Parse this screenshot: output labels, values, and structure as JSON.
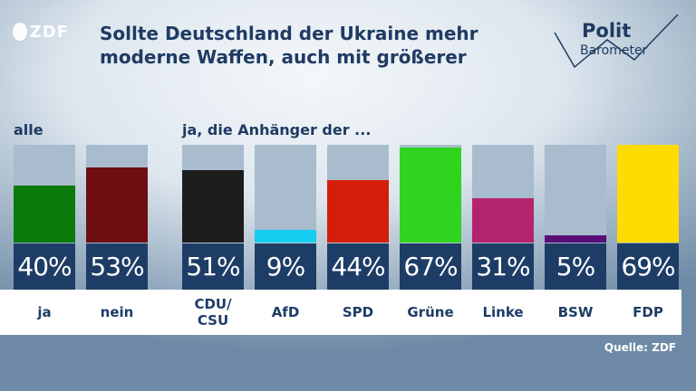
{
  "title": "Sollte Deutschland der Ukraine mehr moderne Waffen, auch mit größerer",
  "brand": {
    "logo": "ZDF",
    "polit": "Polit",
    "barometer": "Barometer"
  },
  "source": "Quelle: ZDF",
  "chart_data": {
    "type": "bar",
    "groups": [
      {
        "label": "alle",
        "categories": [
          "ja",
          "nein"
        ]
      },
      {
        "label": "ja, die Anhänger der ...",
        "categories": [
          "CDU/\nCSU",
          "AfD",
          "SPD",
          "Grüne",
          "Linke",
          "BSW",
          "FDP"
        ]
      }
    ],
    "bars": [
      {
        "category": "ja",
        "value": 40,
        "label": "40%",
        "color": "#0a7a0a"
      },
      {
        "category": "nein",
        "value": 53,
        "label": "53%",
        "color": "#6e0e12"
      },
      {
        "category": "CDU/\nCSU",
        "value": 51,
        "label": "51%",
        "color": "#1c1c1c"
      },
      {
        "category": "AfD",
        "value": 9,
        "label": "9%",
        "color": "#16cdf0"
      },
      {
        "category": "SPD",
        "value": 44,
        "label": "44%",
        "color": "#d41e0a"
      },
      {
        "category": "Grüne",
        "value": 67,
        "label": "67%",
        "color": "#2fd41e"
      },
      {
        "category": "Linke",
        "value": 31,
        "label": "31%",
        "color": "#b4246e"
      },
      {
        "category": "BSW",
        "value": 5,
        "label": "5%",
        "color": "#5a0f78"
      },
      {
        "category": "FDP",
        "value": 69,
        "label": "69%",
        "color": "#ffdc00"
      }
    ],
    "ylim": [
      0,
      69
    ]
  }
}
